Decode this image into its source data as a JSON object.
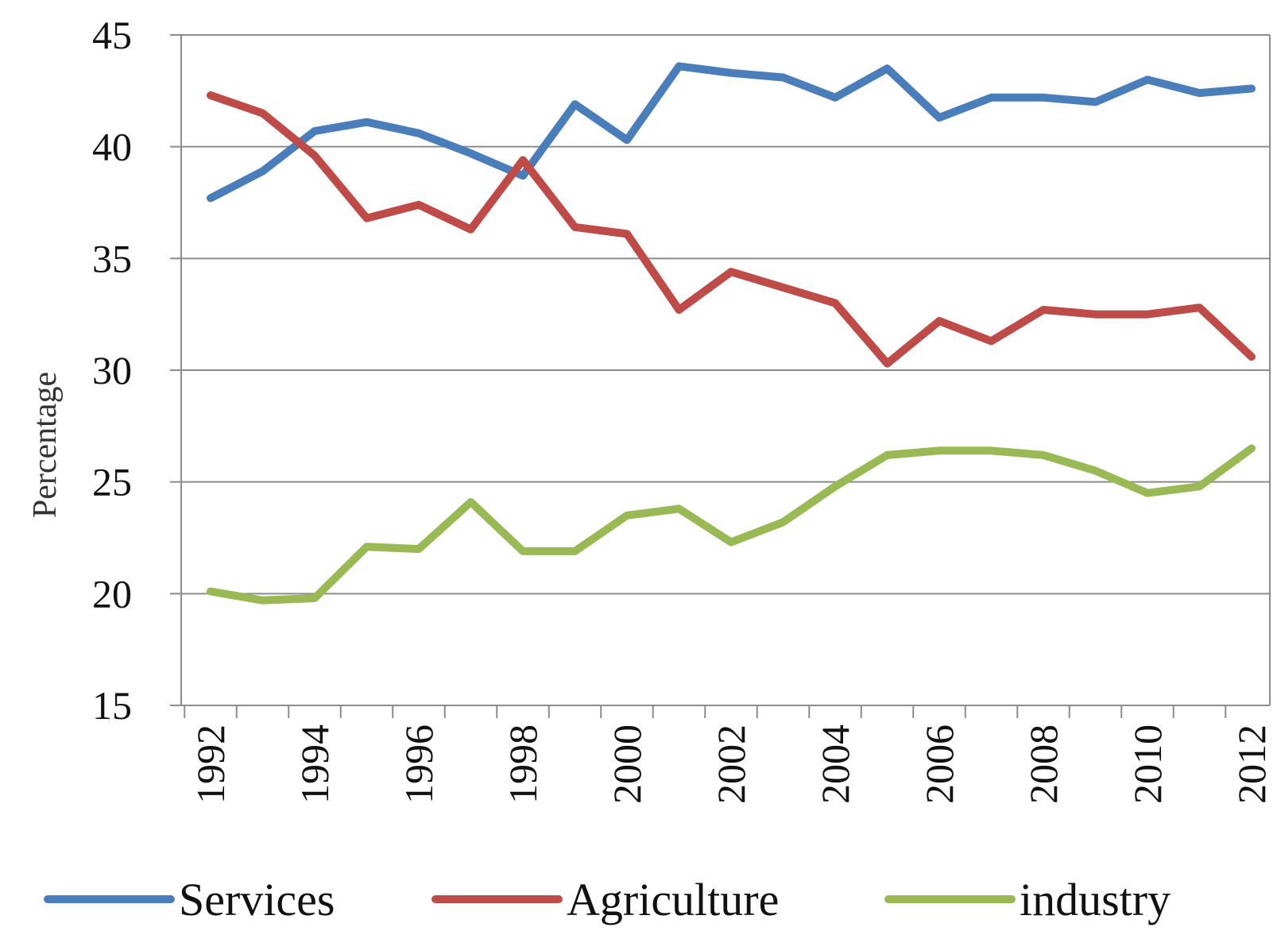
{
  "chart_data": {
    "type": "line",
    "title": "",
    "xlabel": "",
    "ylabel": "Percentage",
    "ylim": [
      15,
      45
    ],
    "y_ticks": [
      15,
      20,
      25,
      30,
      35,
      40,
      45
    ],
    "x_ticks": [
      1992,
      1994,
      1996,
      1998,
      2000,
      2002,
      2004,
      2006,
      2008,
      2010,
      2012
    ],
    "x": [
      1992,
      1993,
      1994,
      1995,
      1996,
      1997,
      1998,
      1999,
      2000,
      2001,
      2002,
      2003,
      2004,
      2005,
      2006,
      2007,
      2008,
      2009,
      2010,
      2011,
      2012
    ],
    "grid": "horizontal",
    "legend_position": "bottom",
    "series": [
      {
        "name": "Services",
        "color": "#4a7ebb",
        "values": [
          37.7,
          38.9,
          40.7,
          41.1,
          40.6,
          39.7,
          38.7,
          41.9,
          40.3,
          43.6,
          43.3,
          43.1,
          42.2,
          43.5,
          41.3,
          42.2,
          42.2,
          42.0,
          43.0,
          42.4,
          42.6
        ]
      },
      {
        "name": "Agriculture",
        "color": "#be4b48",
        "values": [
          42.3,
          41.5,
          39.6,
          36.8,
          37.4,
          36.3,
          39.4,
          36.4,
          36.1,
          32.7,
          34.4,
          33.7,
          33.0,
          30.3,
          32.2,
          31.3,
          32.7,
          32.5,
          32.5,
          32.8,
          30.6
        ]
      },
      {
        "name": "industry",
        "color": "#98b954",
        "values": [
          20.1,
          19.7,
          19.8,
          22.1,
          22.0,
          24.1,
          21.9,
          21.9,
          23.5,
          23.8,
          22.3,
          23.2,
          24.8,
          26.2,
          26.4,
          26.4,
          26.2,
          25.5,
          24.5,
          24.8,
          26.5
        ]
      }
    ]
  }
}
